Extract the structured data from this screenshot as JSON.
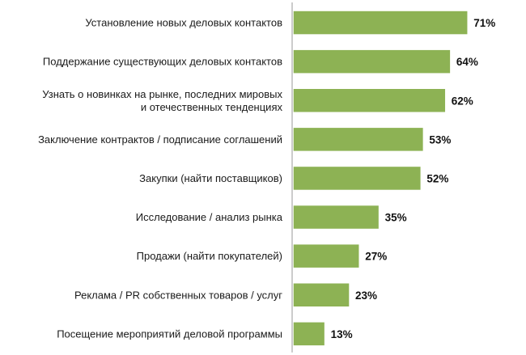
{
  "chart_data": {
    "type": "bar",
    "orientation": "horizontal",
    "categories": [
      [
        "Установление новых деловых контактов"
      ],
      [
        "Поддержание существующих деловых контактов"
      ],
      [
        "Узнать о новинках на рынке, последних мировых",
        "и отечественных тенденциях"
      ],
      [
        "Заключение контрактов / подписание соглашений"
      ],
      [
        "Закупки (найти поставщиков)"
      ],
      [
        "Исследование / анализ рынка"
      ],
      [
        "Продажи (найти покупателей)"
      ],
      [
        "Реклама / PR собственных товаров / услуг"
      ],
      [
        "Посещение мероприятий деловой программы"
      ]
    ],
    "values": [
      71,
      64,
      62,
      53,
      52,
      35,
      27,
      23,
      13
    ],
    "value_labels": [
      "71%",
      "64%",
      "62%",
      "53%",
      "52%",
      "35%",
      "27%",
      "23%",
      "13%"
    ],
    "unit": "%",
    "xlim": [
      0,
      100
    ],
    "grid": false,
    "legend": "none",
    "bar_color": "#8db254",
    "bar_border_color": "#ffffff",
    "axis_color": "#9a9a9a"
  }
}
